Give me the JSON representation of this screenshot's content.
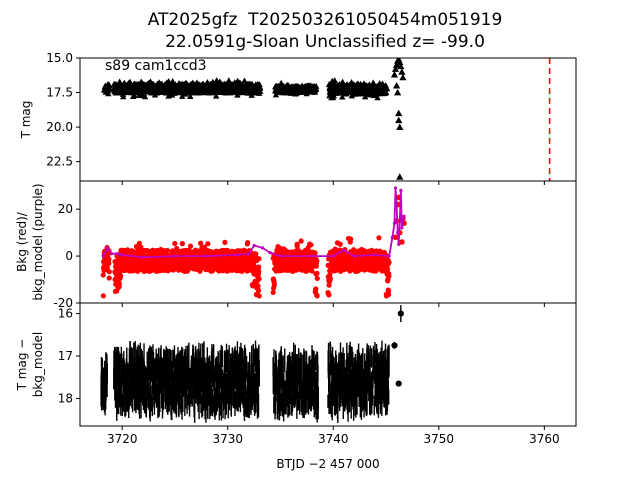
{
  "title": {
    "line1": "AT2025gfz  T202503261050454m051919",
    "line2": "22.0591g-Sloan Unclassified z= -99.0"
  },
  "x_axis": {
    "label": "BTJD −2 457 000",
    "ticks": [
      3720,
      3730,
      3740,
      3750,
      3760
    ],
    "range": [
      3716,
      3763
    ]
  },
  "colors": {
    "black": "#000000",
    "red": "#ff0000",
    "purple": "#bf00bf"
  },
  "chart_data": [
    {
      "type": "scatter",
      "panel": "top",
      "ylabel": "T mag",
      "annotation": "s89 cam1ccd3",
      "ylim": [
        23.9,
        15.0
      ],
      "y_inverted": true,
      "yticks": [
        15.0,
        17.5,
        20.0,
        22.5
      ],
      "marker": "triangle",
      "segments": [
        {
          "x_start": 3718.3,
          "x_end": 3718.8,
          "y_low": 16.8,
          "y_high": 17.6
        },
        {
          "x_start": 3719.2,
          "x_end": 3733.1,
          "y_low": 16.6,
          "y_high": 17.8
        },
        {
          "x_start": 3734.5,
          "x_end": 3738.4,
          "y_low": 16.8,
          "y_high": 17.7
        },
        {
          "x_start": 3739.6,
          "x_end": 3745.1,
          "y_low": 16.6,
          "y_high": 17.9
        }
      ],
      "points": [
        {
          "x": 3745.8,
          "y": 16.2
        },
        {
          "x": 3745.9,
          "y": 15.8
        },
        {
          "x": 3746.0,
          "y": 15.5
        },
        {
          "x": 3746.1,
          "y": 15.2
        },
        {
          "x": 3746.2,
          "y": 15.1
        },
        {
          "x": 3746.3,
          "y": 15.3
        },
        {
          "x": 3746.4,
          "y": 15.6
        },
        {
          "x": 3746.5,
          "y": 16.0
        },
        {
          "x": 3746.6,
          "y": 16.4
        },
        {
          "x": 3746.0,
          "y": 17.0
        },
        {
          "x": 3746.1,
          "y": 17.5
        },
        {
          "x": 3746.2,
          "y": 19.0
        },
        {
          "x": 3746.2,
          "y": 19.5
        },
        {
          "x": 3746.3,
          "y": 20.0
        },
        {
          "x": 3746.3,
          "y": 23.6
        }
      ],
      "vline": {
        "x": 3760.5,
        "color": "red",
        "style": "dashed"
      }
    },
    {
      "type": "scatter",
      "panel": "middle",
      "ylabel": "Bkg (red)/\nbkg_model (purple)",
      "ylim": [
        -20,
        32
      ],
      "yticks": [
        -20,
        0,
        20
      ],
      "series": [
        {
          "name": "Bkg",
          "color": "red",
          "segments": [
            {
              "x_start": 3718.2,
              "x_end": 3718.8,
              "y_low": -17,
              "y_high": 0
            },
            {
              "x_start": 3719.3,
              "x_end": 3733.0,
              "y_low": -17,
              "y_high": 9
            },
            {
              "x_start": 3734.3,
              "x_end": 3738.5,
              "y_low": -17,
              "y_high": 8
            },
            {
              "x_start": 3739.5,
              "x_end": 3745.3,
              "y_low": -17,
              "y_high": 8
            }
          ],
          "points": [
            {
              "x": 3745.9,
              "y": 8
            },
            {
              "x": 3746.0,
              "y": 15
            },
            {
              "x": 3746.1,
              "y": 22
            },
            {
              "x": 3746.2,
              "y": 25
            },
            {
              "x": 3746.3,
              "y": 10
            },
            {
              "x": 3746.5,
              "y": 6
            },
            {
              "x": 3746.6,
              "y": 16
            },
            {
              "x": 3746.7,
              "y": 14
            }
          ]
        },
        {
          "name": "bkg_model",
          "color": "purple",
          "line": [
            [
              3718.2,
              0
            ],
            [
              3718.6,
              3.5
            ],
            [
              3719.0,
              1
            ],
            [
              3719.5,
              1
            ],
            [
              3720.0,
              0.5
            ],
            [
              3722.0,
              -0.5
            ],
            [
              3725.0,
              0
            ],
            [
              3728.0,
              0
            ],
            [
              3731.0,
              0.5
            ],
            [
              3732.0,
              1
            ],
            [
              3732.5,
              4.5
            ],
            [
              3733.3,
              3.5
            ],
            [
              3734.0,
              1.5
            ],
            [
              3735.0,
              0
            ],
            [
              3738.0,
              0
            ],
            [
              3740.0,
              0
            ],
            [
              3741.0,
              2.5
            ],
            [
              3742.0,
              0
            ],
            [
              3744.0,
              0.5
            ],
            [
              3745.3,
              0
            ],
            [
              3745.6,
              8
            ],
            [
              3745.8,
              14
            ],
            [
              3745.9,
              29
            ],
            [
              3746.0,
              22
            ],
            [
              3746.1,
              10
            ],
            [
              3746.2,
              5
            ],
            [
              3746.3,
              15
            ],
            [
              3746.4,
              28
            ],
            [
              3746.5,
              12
            ],
            [
              3746.7,
              17
            ]
          ]
        }
      ]
    },
    {
      "type": "scatter",
      "panel": "bottom",
      "ylabel": "T mag −\nbkg_model",
      "ylim": [
        18.65,
        15.75
      ],
      "y_inverted": true,
      "yticks": [
        16,
        17,
        18
      ],
      "error_bars": true,
      "segments": [
        {
          "x_start": 3718.0,
          "x_end": 3718.6,
          "y_low": 16.9,
          "y_high": 18.3
        },
        {
          "x_start": 3719.2,
          "x_end": 3733.0,
          "y_low": 16.6,
          "y_high": 18.6
        },
        {
          "x_start": 3734.3,
          "x_end": 3738.6,
          "y_low": 16.7,
          "y_high": 18.6
        },
        {
          "x_start": 3739.5,
          "x_end": 3745.3,
          "y_low": 16.6,
          "y_high": 18.6
        }
      ],
      "points": [
        {
          "x": 3746.4,
          "y": 16.0,
          "err": 0.2
        },
        {
          "x": 3746.2,
          "y": 17.65,
          "err": 0.03
        },
        {
          "x": 3745.8,
          "y": 16.75,
          "err": 0.08
        }
      ]
    }
  ]
}
